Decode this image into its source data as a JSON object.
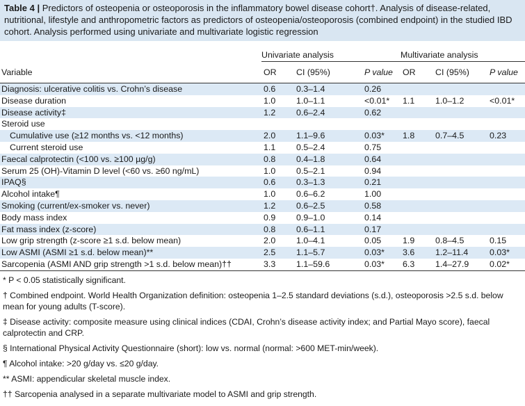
{
  "caption": {
    "label": "Table 4 |",
    "text": " Predictors of osteopenia or osteoporosis in the inflammatory bowel disease cohort†. Analysis of disease-related, nutritional, lifestyle and anthropometric factors as predictors of osteopenia/osteoporosis (combined endpoint) in the studied IBD cohort. Analysis performed using univariate and multivariate logistic regression"
  },
  "groups": {
    "univariate": "Univariate analysis",
    "multivariate": "Multivariate analysis"
  },
  "headers": {
    "variable": "Variable",
    "or": "OR",
    "ci": "CI (95%)",
    "p": "P value"
  },
  "rows": [
    {
      "variable": "Diagnosis: ulcerative colitis vs. Crohn’s disease",
      "u_or": "0.6",
      "u_ci": "0.3–1.4",
      "u_p": "0.26",
      "m_or": "",
      "m_ci": "",
      "m_p": ""
    },
    {
      "variable": "Disease duration",
      "u_or": "1.0",
      "u_ci": "1.0–1.1",
      "u_p": "<0.01*",
      "m_or": "1.1",
      "m_ci": "1.0–1.2",
      "m_p": "<0.01*"
    },
    {
      "variable": "Disease activity‡",
      "u_or": "1.2",
      "u_ci": "0.6–2.4",
      "u_p": "0.62",
      "m_or": "",
      "m_ci": "",
      "m_p": ""
    },
    {
      "variable": "Steroid use",
      "u_or": "",
      "u_ci": "",
      "u_p": "",
      "m_or": "",
      "m_ci": "",
      "m_p": ""
    },
    {
      "variable": "Cumulative use (≥12 months vs. <12 months)",
      "u_or": "2.0",
      "u_ci": "1.1–9.6",
      "u_p": "0.03*",
      "m_or": "1.8",
      "m_ci": "0.7–4.5",
      "m_p": "0.23"
    },
    {
      "variable": "Current steroid use",
      "u_or": "1.1",
      "u_ci": "0.5–2.4",
      "u_p": "0.75",
      "m_or": "",
      "m_ci": "",
      "m_p": ""
    },
    {
      "variable": "Faecal calprotectin (<100 vs. ≥100 µg/g)",
      "u_or": "0.8",
      "u_ci": "0.4–1.8",
      "u_p": "0.64",
      "m_or": "",
      "m_ci": "",
      "m_p": ""
    },
    {
      "variable": "Serum 25 (OH)-Vitamin D level (<60 vs. ≥60 ng/mL)",
      "u_or": "1.0",
      "u_ci": "0.5–2.1",
      "u_p": "0.94",
      "m_or": "",
      "m_ci": "",
      "m_p": ""
    },
    {
      "variable": "IPAQ§",
      "u_or": "0.6",
      "u_ci": "0.3–1.3",
      "u_p": "0.21",
      "m_or": "",
      "m_ci": "",
      "m_p": ""
    },
    {
      "variable": "Alcohol intake¶",
      "u_or": "1.0",
      "u_ci": "0.6–6.2",
      "u_p": "1.00",
      "m_or": "",
      "m_ci": "",
      "m_p": ""
    },
    {
      "variable": "Smoking (current/ex-smoker vs. never)",
      "u_or": "1.2",
      "u_ci": "0.6–2.5",
      "u_p": "0.58",
      "m_or": "",
      "m_ci": "",
      "m_p": ""
    },
    {
      "variable": "Body mass index",
      "u_or": "0.9",
      "u_ci": "0.9–1.0",
      "u_p": "0.14",
      "m_or": "",
      "m_ci": "",
      "m_p": ""
    },
    {
      "variable": "Fat mass index (z-score)",
      "u_or": "0.8",
      "u_ci": "0.6–1.1",
      "u_p": "0.17",
      "m_or": "",
      "m_ci": "",
      "m_p": ""
    },
    {
      "variable": "Low grip strength (z-score ≥1 s.d. below mean)",
      "u_or": "2.0",
      "u_ci": "1.0–4.1",
      "u_p": "0.05",
      "m_or": "1.9",
      "m_ci": "0.8–4.5",
      "m_p": "0.15"
    },
    {
      "variable": "Low ASMI (ASMI ≥1 s.d. below mean)**",
      "u_or": "2.5",
      "u_ci": "1.1–5.7",
      "u_p": "0.03*",
      "m_or": "3.6",
      "m_ci": "1.2–11.4",
      "m_p": "0.03*"
    },
    {
      "variable": "Sarcopenia (ASMI AND grip strength >1 s.d. below mean)††",
      "u_or": "3.3",
      "u_ci": "1.1–59.6",
      "u_p": "0.03*",
      "m_or": "6.3",
      "m_ci": "1.4–27.9",
      "m_p": "0.02*"
    }
  ],
  "footnotes": [
    "* P < 0.05 statistically significant.",
    "† Combined endpoint. World Health Organization definition: osteopenia 1–2.5 standard deviations (s.d.), osteoporosis >2.5 s.d. below mean for young adults (T-score).",
    "‡ Disease activity: composite measure using clinical indices (CDAI, Crohn’s disease activity index; and Partial Mayo score), faecal calprotectin and CRP.",
    "§ International Physical Activity Questionnaire (short): low vs. normal (normal: >600 MET-min/week).",
    "¶ Alcohol intake: >20 g/day vs. ≤20 g/day.",
    "** ASMI: appendicular skeletal muscle index.",
    "†† Sarcopenia analysed in a separate multivariate model to ASMI and grip strength."
  ],
  "colors": {
    "caption_bg": "#d9e6f2",
    "row_band": "#dce9f5"
  }
}
